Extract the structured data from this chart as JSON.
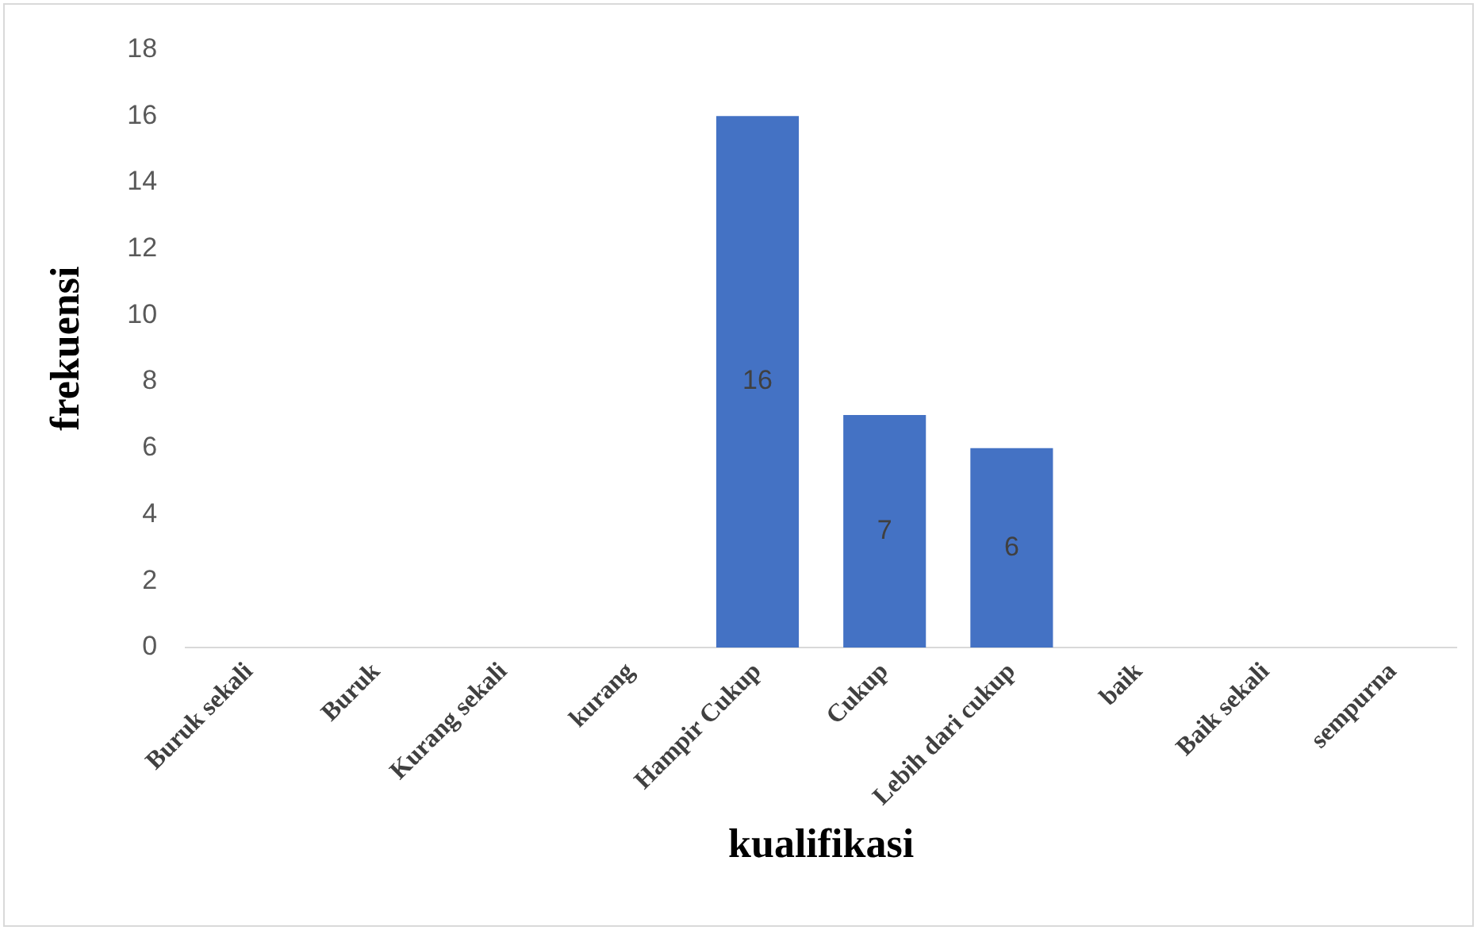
{
  "chart_data": {
    "type": "bar",
    "xlabel": "kualifikasi",
    "ylabel": "frekuensi",
    "categories": [
      "Buruk sekali",
      "Buruk",
      "Kurang sekali",
      "kurang",
      "Hampir Cukup",
      "Cukup",
      "Lebih dari cukup",
      "baik",
      "Baik sekali",
      "sempurna"
    ],
    "values": [
      0,
      0,
      0,
      0,
      16,
      7,
      6,
      0,
      0,
      0
    ],
    "value_labels": [
      null,
      null,
      null,
      null,
      "16",
      "7",
      "6",
      null,
      null,
      null
    ],
    "color": "#4472c4",
    "ylim": [
      0,
      18
    ],
    "yticks": [
      0,
      2,
      4,
      6,
      8,
      10,
      12,
      14,
      16,
      18
    ],
    "grid": false
  }
}
